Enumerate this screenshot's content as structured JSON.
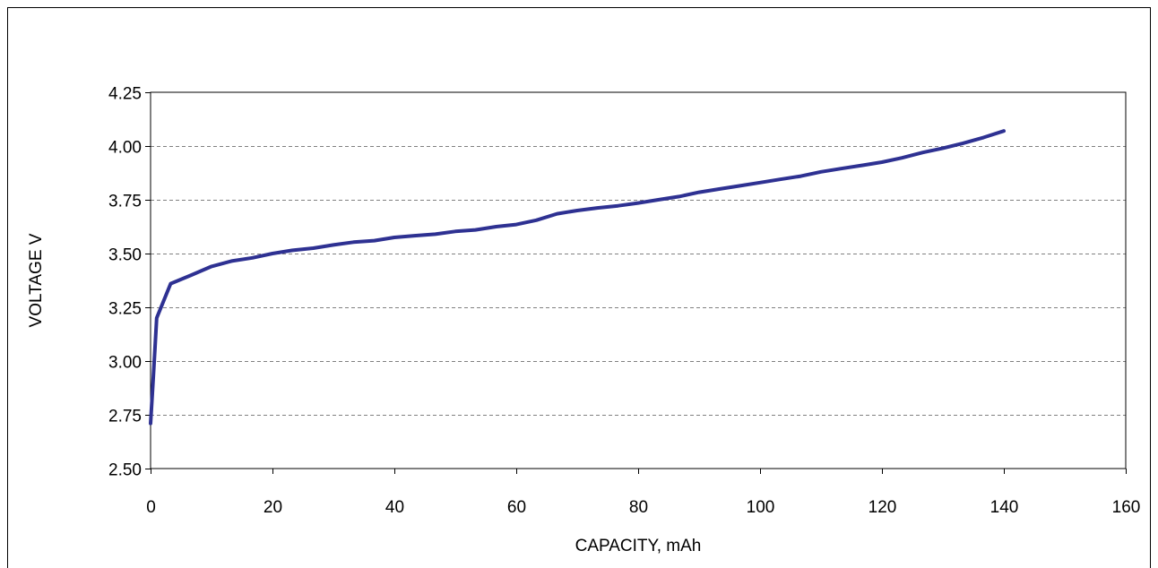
{
  "chart_data": {
    "type": "line",
    "title": "",
    "xlabel": "CAPACITY, mAh",
    "ylabel": "VOLTAGE   V",
    "xlim": [
      0,
      160
    ],
    "ylim": [
      2.5,
      4.25
    ],
    "x_ticks": [
      "0",
      "20",
      "40",
      "60",
      "80",
      "100",
      "120",
      "140",
      "160"
    ],
    "y_ticks": [
      "2.50",
      "2.75",
      "3.00",
      "3.25",
      "3.50",
      "3.75",
      "4.00",
      "4.25"
    ],
    "grid": "horizontal dashed",
    "legend": "none",
    "colors": {
      "line": "#2e3192",
      "grid": "#808080",
      "frame": "#000000"
    },
    "series": [
      {
        "x": [
          0,
          0.3,
          0.7,
          1,
          3.3,
          6.7,
          10,
          13.3,
          16.7,
          20,
          23.3,
          26.7,
          30,
          33.3,
          36.7,
          40,
          43.3,
          46.7,
          50,
          53.3,
          56.7,
          60,
          63.3,
          66.7,
          70,
          73.3,
          76.7,
          80,
          83.3,
          86.7,
          90,
          93.3,
          96.7,
          100,
          103.3,
          106.7,
          110,
          113.3,
          116.7,
          120,
          123.3,
          126.7,
          130,
          133.3,
          136.7,
          140
        ],
        "y": [
          2.71,
          2.85,
          3.05,
          3.2,
          3.36,
          3.4,
          3.44,
          3.465,
          3.48,
          3.5,
          3.515,
          3.525,
          3.54,
          3.553,
          3.56,
          3.575,
          3.583,
          3.59,
          3.603,
          3.61,
          3.625,
          3.635,
          3.655,
          3.685,
          3.7,
          3.712,
          3.722,
          3.735,
          3.75,
          3.765,
          3.785,
          3.8,
          3.815,
          3.83,
          3.845,
          3.86,
          3.88,
          3.895,
          3.91,
          3.925,
          3.945,
          3.97,
          3.99,
          4.013,
          4.04,
          4.07
        ]
      }
    ]
  }
}
